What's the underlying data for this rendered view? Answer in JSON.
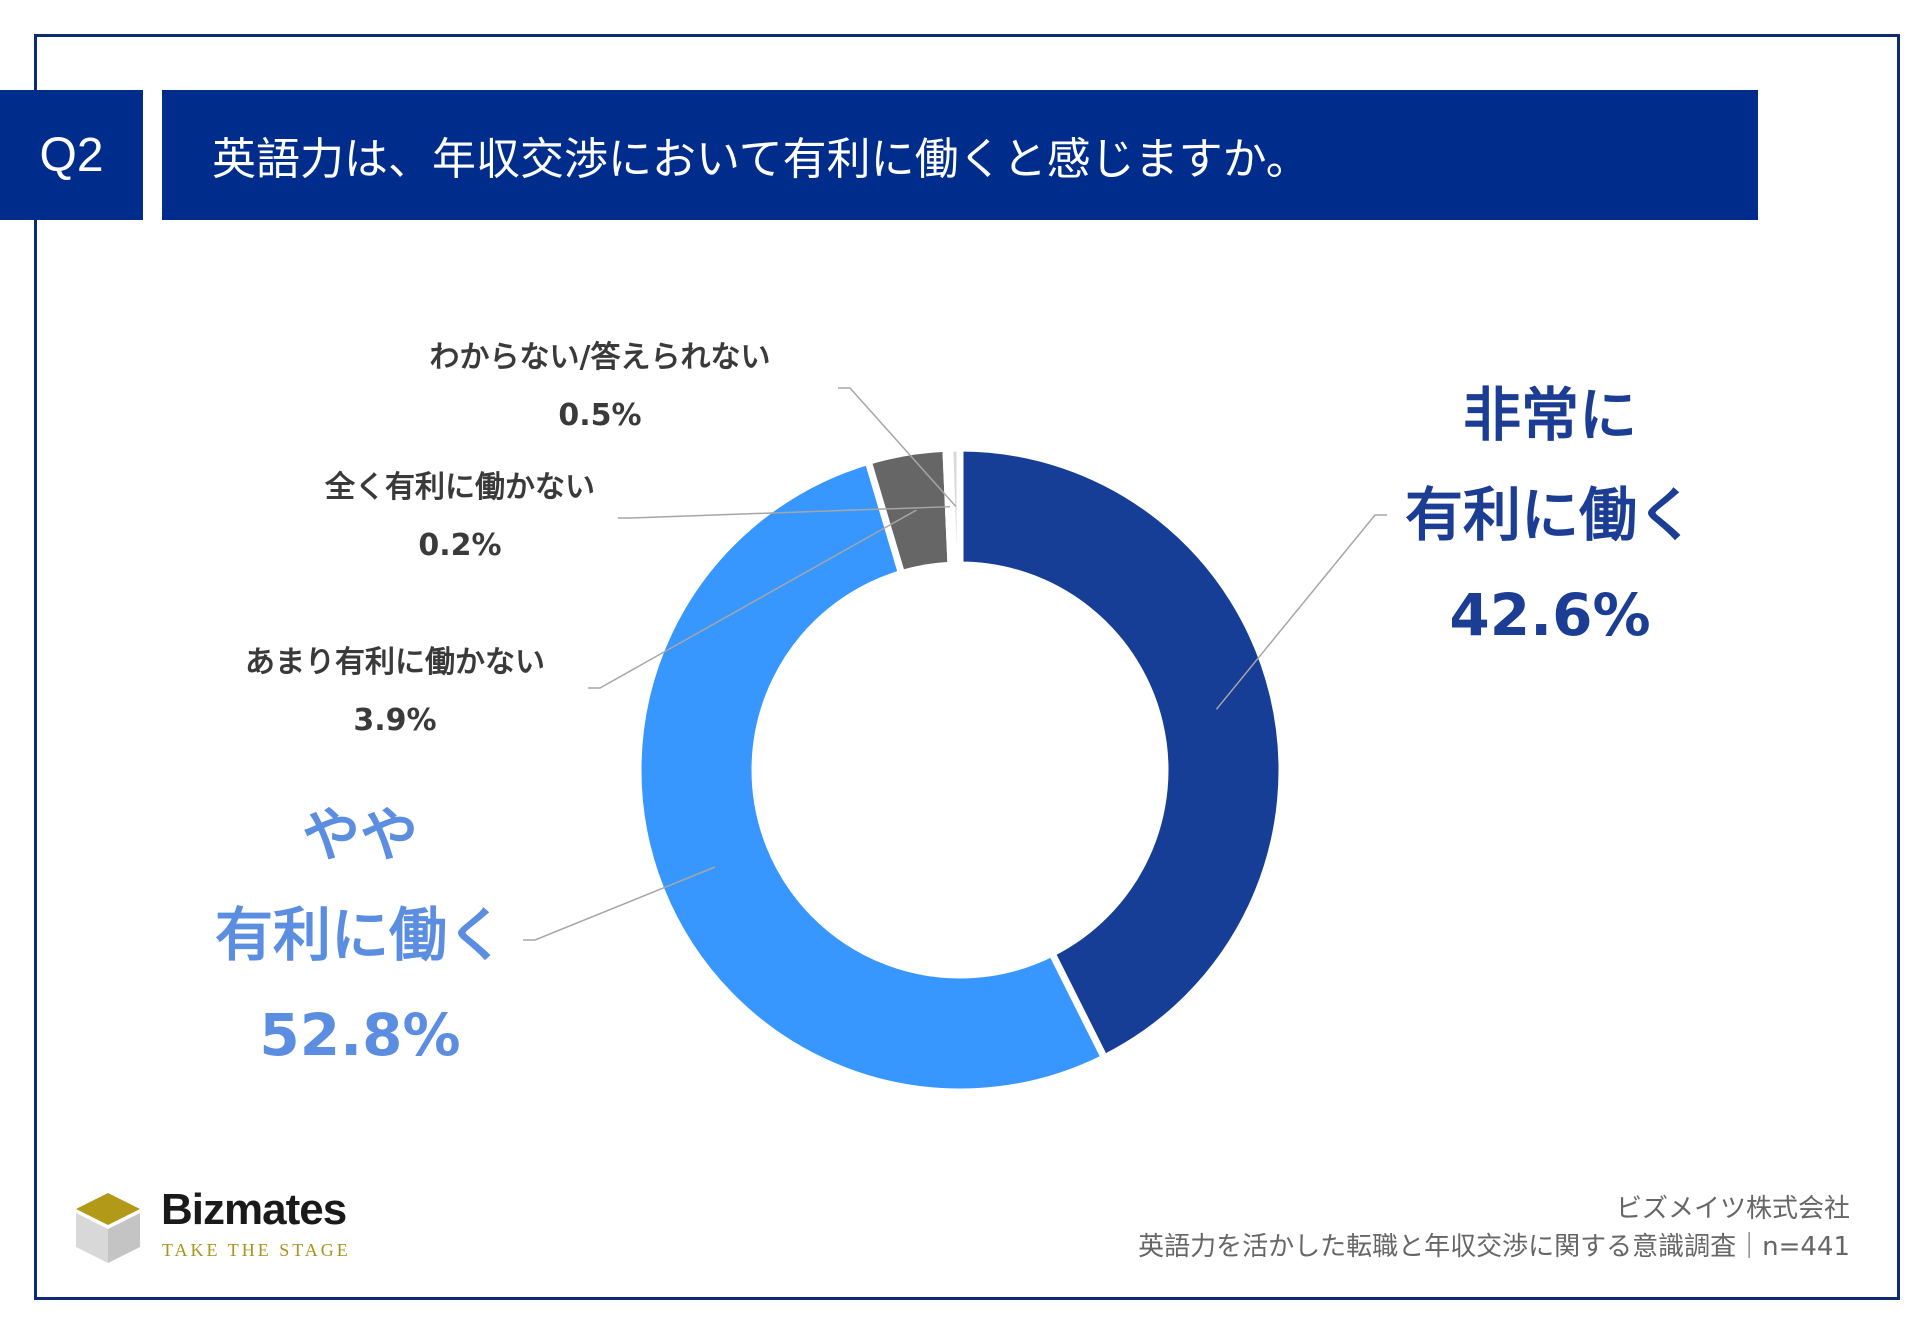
{
  "header": {
    "badge": "Q2",
    "question": "英語力は、年収交渉において有利に働くと感じますか。"
  },
  "chart_data": {
    "type": "pie",
    "donut": true,
    "title": "英語力は、年収交渉において有利に働くと感じますか。",
    "slices": [
      {
        "label": "非常に有利に働く",
        "value": 42.6,
        "color": "#163e96"
      },
      {
        "label": "やや有利に働く",
        "value": 52.8,
        "color": "#3797ff"
      },
      {
        "label": "あまり有利に働かない",
        "value": 3.9,
        "color": "#666666"
      },
      {
        "label": "全く有利に働かない",
        "value": 0.2,
        "color": "#aaaaaa"
      },
      {
        "label": "わからない/答えられない",
        "value": 0.5,
        "color": "#d9d9d9"
      }
    ]
  },
  "labels": {
    "very_name_line1": "非常に",
    "very_name_line2": "有利に働く",
    "very_value": "42.6%",
    "some_name_line1": "やや",
    "some_name_line2": "有利に働く",
    "some_value": "52.8%",
    "notmuch_name": "あまり有利に働かない",
    "notmuch_value": "3.9%",
    "notatall_name": "全く有利に働かない",
    "notatall_value": "0.2%",
    "unknown_name": "わからない/答えられない",
    "unknown_value": "0.5%"
  },
  "logo": {
    "name": "Bizmates",
    "tagline": "TAKE THE STAGE"
  },
  "source": {
    "company": "ビズメイツ株式会社",
    "survey": "英語力を活かした転職と年収交渉に関する意識調査｜n=441"
  }
}
